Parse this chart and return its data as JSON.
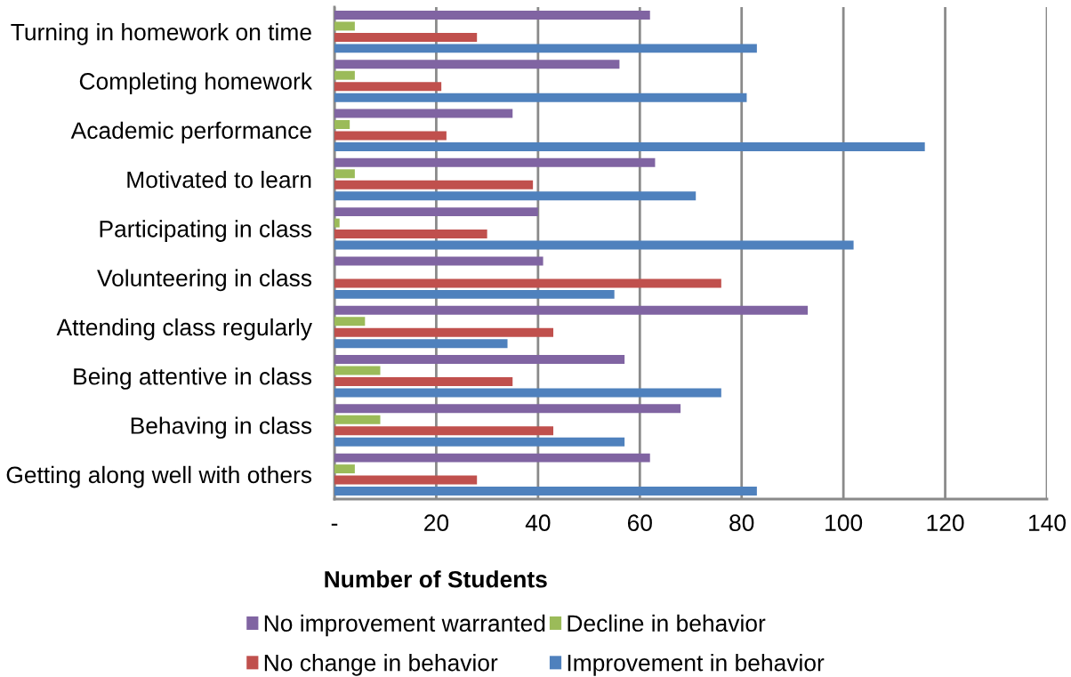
{
  "chart_data": {
    "type": "bar",
    "orientation": "horizontal",
    "categories": [
      "Turning in homework on time",
      "Completing homework",
      "Academic performance",
      "Motivated to learn",
      "Participating in class",
      "Volunteering in class",
      "Attending class regularly",
      "Being attentive in class",
      "Behaving in class",
      "Getting along well with others"
    ],
    "series": [
      {
        "name": "No improvement warranted",
        "color": "#8064a2",
        "values": [
          62,
          56,
          35,
          63,
          40,
          41,
          93,
          57,
          68,
          62
        ]
      },
      {
        "name": "Decline in behavior",
        "color": "#9bbb59",
        "values": [
          4,
          4,
          3,
          4,
          1,
          null,
          6,
          9,
          9,
          4
        ]
      },
      {
        "name": "No change in behavior",
        "color": "#c0504d",
        "values": [
          28,
          21,
          22,
          39,
          30,
          76,
          43,
          35,
          43,
          28
        ]
      },
      {
        "name": "Improvement in behavior",
        "color": "#4f81bd",
        "values": [
          83,
          81,
          116,
          71,
          102,
          55,
          34,
          76,
          57,
          83
        ]
      }
    ],
    "xlim": [
      0,
      140
    ],
    "xticks": [
      {
        "value": 0,
        "label": "-"
      },
      20,
      40,
      60,
      80,
      100,
      120,
      140
    ],
    "xlabel": "Number of Students",
    "grid": "x",
    "legend": "bottom"
  }
}
